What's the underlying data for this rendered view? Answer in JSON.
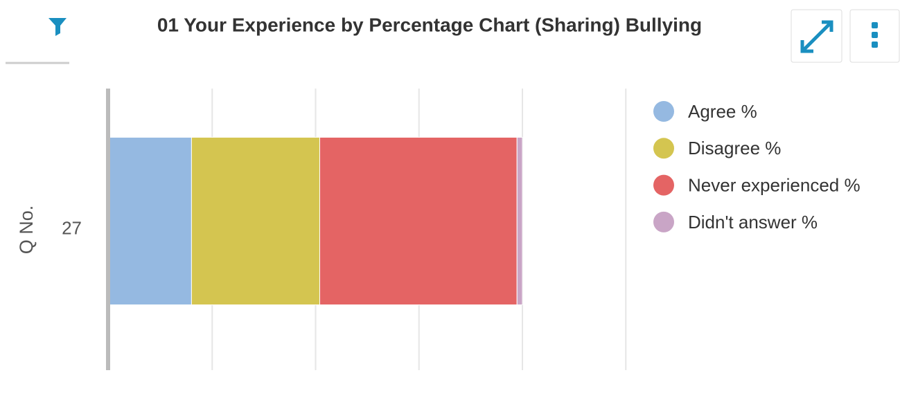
{
  "chart_data": {
    "type": "stacked-bar-horizontal",
    "title": "01 Your Experience by Percentage Chart (Sharing) Bullying",
    "y_label": "Q No.",
    "categories": [
      "27"
    ],
    "series": [
      {
        "name": "Agree %",
        "color": "#95b9e1",
        "values": [
          20
        ]
      },
      {
        "name": "Disagree %",
        "color": "#d4c550",
        "values": [
          31
        ]
      },
      {
        "name": "Never experienced %",
        "color": "#e46464",
        "values": [
          47.7
        ]
      },
      {
        "name": "Didn't answer %",
        "color": "#c9a5c6",
        "values": [
          1.3
        ]
      }
    ],
    "xlim": [
      0,
      125
    ],
    "xticks": [
      0,
      25,
      50,
      75,
      100,
      125
    ],
    "grid": true,
    "legend": "right"
  }
}
